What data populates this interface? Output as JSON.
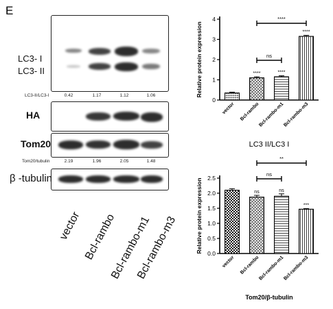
{
  "panel_letter": "E",
  "blot": {
    "lc3_labels": [
      "LC3- I",
      "LC3- II"
    ],
    "lc3_ratio_label": "LC3-II/LC3-I",
    "lc3_ratio_values": [
      "0.42",
      "1.17",
      "1.12",
      "1.06"
    ],
    "ha_label": "HA",
    "tom20_label": "Tom20",
    "tom20_ratio_label": "Tom20/tubulin",
    "tom20_ratio_values": [
      "2.19",
      "1.96",
      "2.05",
      "1.48"
    ],
    "tubulin_label": "β -tubulin",
    "lanes": [
      "vector",
      "Bcl-rambo",
      "Bcl-rambo-m1",
      "Bcl-rambo-m3"
    ]
  },
  "chart_data": [
    {
      "type": "bar",
      "categories": [
        "vector",
        "Bcl-rambo",
        "Bcl-rambo-m1",
        "Bcl-rambo-m3"
      ],
      "values": [
        0.35,
        1.1,
        1.15,
        3.15
      ],
      "errors": [
        0.04,
        0.05,
        0.05,
        0.05
      ],
      "bar_labels": [
        "",
        "****",
        "****",
        "****"
      ],
      "comparisons": [
        {
          "from": 1,
          "to": 3,
          "label": "****"
        },
        {
          "from": 1,
          "to": 2,
          "label": "ns"
        }
      ],
      "xlabel": "LC3 II/LC3 I",
      "ylabel": "Relative protein expression",
      "ylim": [
        0,
        4
      ],
      "yticks": [
        "0",
        "1",
        "2",
        "3",
        "4"
      ],
      "patterns": [
        "dots",
        "hatch",
        "horizontal",
        "vertical"
      ]
    },
    {
      "type": "bar",
      "categories": [
        "vector",
        "Bcl-rambo",
        "Bcl-rambo-m1",
        "Bcl-rambo-m3"
      ],
      "values": [
        2.1,
        1.87,
        1.9,
        1.47
      ],
      "errors": [
        0.05,
        0.06,
        0.08,
        0.02
      ],
      "bar_labels": [
        "",
        "ns",
        "ns",
        "***"
      ],
      "comparisons": [
        {
          "from": 1,
          "to": 3,
          "label": "**"
        },
        {
          "from": 1,
          "to": 2,
          "label": "ns"
        }
      ],
      "xlabel": "Tom20/β-tubulin",
      "ylabel": "Relative protein expression",
      "ylim": [
        0,
        2.5
      ],
      "yticks": [
        "0.0",
        "0.5",
        "1.0",
        "1.5",
        "2.0",
        "2.5"
      ],
      "patterns": [
        "checker",
        "hatch",
        "horizontal",
        "vertical"
      ]
    }
  ]
}
